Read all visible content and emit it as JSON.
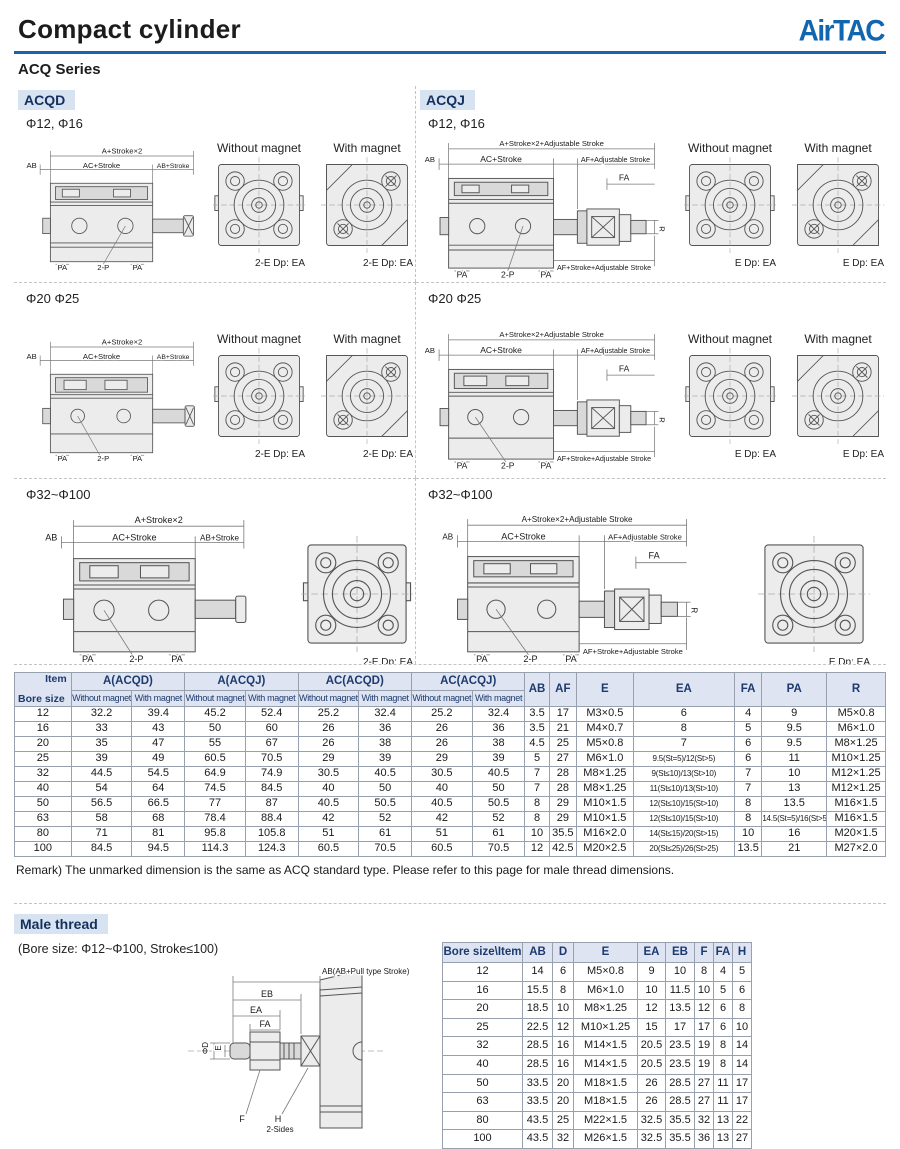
{
  "header": {
    "title": "Compact cylinder",
    "series": "ACQ Series",
    "logo": "AirTAC"
  },
  "labels": {
    "without": "Without magnet",
    "with": "With magnet",
    "a2": "A+Stroke×2",
    "a2adj": "A+Stroke×2+Adjustable Stroke",
    "ab": "AB",
    "ac": "AC+Stroke",
    "abst": "AB+Stroke",
    "afadj": "AF+Adjustable Stroke",
    "fa": "FA",
    "r": "R",
    "afstadj": "AF+Stroke+Adjustable Stroke",
    "pa": "PA",
    "p2": "2-P",
    "port2e": "2-E Dp: EA",
    "porte": "E Dp: EA"
  },
  "sections": {
    "acqd": {
      "label": "ACQD",
      "sizes": [
        "Φ12, Φ16",
        "Φ20  Φ25",
        "Φ32~Φ100"
      ]
    },
    "acqj": {
      "label": "ACQJ",
      "sizes": [
        "Φ12, Φ16",
        "Φ20  Φ25",
        "Φ32~Φ100"
      ]
    }
  },
  "main_table": {
    "corner": {
      "top": "Item",
      "bottom": "Bore size"
    },
    "groups": [
      "A(ACQD)",
      "A(ACQJ)",
      "AC(ACQD)",
      "AC(ACQJ)"
    ],
    "sub": [
      "Without magnet",
      "With magnet"
    ],
    "cols": [
      "AB",
      "AF",
      "E",
      "EA",
      "FA",
      "PA",
      "R"
    ],
    "rows": [
      [
        "12",
        "32.2",
        "39.4",
        "45.2",
        "52.4",
        "25.2",
        "32.4",
        "25.2",
        "32.4",
        "3.5",
        "17",
        "M3×0.5",
        "6",
        "4",
        "9",
        "M5×0.8"
      ],
      [
        "16",
        "33",
        "43",
        "50",
        "60",
        "26",
        "36",
        "26",
        "36",
        "3.5",
        "21",
        "M4×0.7",
        "8",
        "5",
        "9.5",
        "M6×1.0"
      ],
      [
        "20",
        "35",
        "47",
        "55",
        "67",
        "26",
        "38",
        "26",
        "38",
        "4.5",
        "25",
        "M5×0.8",
        "7",
        "6",
        "9.5",
        "M8×1.25"
      ],
      [
        "25",
        "39",
        "49",
        "60.5",
        "70.5",
        "29",
        "39",
        "29",
        "39",
        "5",
        "27",
        "M6×1.0",
        "9.5(St=5)/12(St>5)",
        "6",
        "11",
        "M10×1.25"
      ],
      [
        "32",
        "44.5",
        "54.5",
        "64.9",
        "74.9",
        "30.5",
        "40.5",
        "30.5",
        "40.5",
        "7",
        "28",
        "M8×1.25",
        "9(St≤10)/13(St>10)",
        "7",
        "10",
        "M12×1.25"
      ],
      [
        "40",
        "54",
        "64",
        "74.5",
        "84.5",
        "40",
        "50",
        "40",
        "50",
        "7",
        "28",
        "M8×1.25",
        "11(St≤10)/13(St>10)",
        "7",
        "13",
        "M12×1.25"
      ],
      [
        "50",
        "56.5",
        "66.5",
        "77",
        "87",
        "40.5",
        "50.5",
        "40.5",
        "50.5",
        "8",
        "29",
        "M10×1.5",
        "12(St≤10)/15(St>10)",
        "8",
        "13.5",
        "M16×1.5"
      ],
      [
        "63",
        "58",
        "68",
        "78.4",
        "88.4",
        "42",
        "52",
        "42",
        "52",
        "8",
        "29",
        "M10×1.5",
        "12(St≤10)/15(St>10)",
        "8",
        "14.5(St=5)/16(St>5)",
        "M16×1.5"
      ],
      [
        "80",
        "71",
        "81",
        "95.8",
        "105.8",
        "51",
        "61",
        "51",
        "61",
        "10",
        "35.5",
        "M16×2.0",
        "14(St≤15)/20(St>15)",
        "10",
        "16",
        "M20×1.5"
      ],
      [
        "100",
        "84.5",
        "94.5",
        "114.3",
        "124.3",
        "60.5",
        "70.5",
        "60.5",
        "70.5",
        "12",
        "42.5",
        "M20×2.5",
        "20(St≤25)/26(St>25)",
        "13.5",
        "21",
        "M27×2.0"
      ]
    ]
  },
  "remark": "Remark)  The unmarked dimension is the same as ACQ standard type. Please refer to this page for male thread dimensions.",
  "male_thread": {
    "heading": "Male thread",
    "subtitle": "(Bore size: Φ12~Φ100, Stroke≤100)",
    "labels": {
      "abpull": "AB(AB+Pull type Stroke)",
      "eb": "EB",
      "ea": "EA",
      "fa": "FA",
      "phid": "ΦD",
      "e": "E",
      "f": "F",
      "h": "H",
      "sides": "2-Sides"
    },
    "table": {
      "headers": [
        "Bore size\\Item",
        "AB",
        "D",
        "E",
        "EA",
        "EB",
        "F",
        "FA",
        "H"
      ],
      "rows": [
        [
          "12",
          "14",
          "6",
          "M5×0.8",
          "9",
          "10",
          "8",
          "4",
          "5"
        ],
        [
          "16",
          "15.5",
          "8",
          "M6×1.0",
          "10",
          "11.5",
          "10",
          "5",
          "6"
        ],
        [
          "20",
          "18.5",
          "10",
          "M8×1.25",
          "12",
          "13.5",
          "12",
          "6",
          "8"
        ],
        [
          "25",
          "22.5",
          "12",
          "M10×1.25",
          "15",
          "17",
          "17",
          "6",
          "10"
        ],
        [
          "32",
          "28.5",
          "16",
          "M14×1.5",
          "20.5",
          "23.5",
          "19",
          "8",
          "14"
        ],
        [
          "40",
          "28.5",
          "16",
          "M14×1.5",
          "20.5",
          "23.5",
          "19",
          "8",
          "14"
        ],
        [
          "50",
          "33.5",
          "20",
          "M18×1.5",
          "26",
          "28.5",
          "27",
          "11",
          "17"
        ],
        [
          "63",
          "33.5",
          "20",
          "M18×1.5",
          "26",
          "28.5",
          "27",
          "11",
          "17"
        ],
        [
          "80",
          "43.5",
          "25",
          "M22×1.5",
          "32.5",
          "35.5",
          "32",
          "13",
          "22"
        ],
        [
          "100",
          "43.5",
          "32",
          "M26×1.5",
          "32.5",
          "35.5",
          "36",
          "13",
          "27"
        ]
      ]
    }
  }
}
